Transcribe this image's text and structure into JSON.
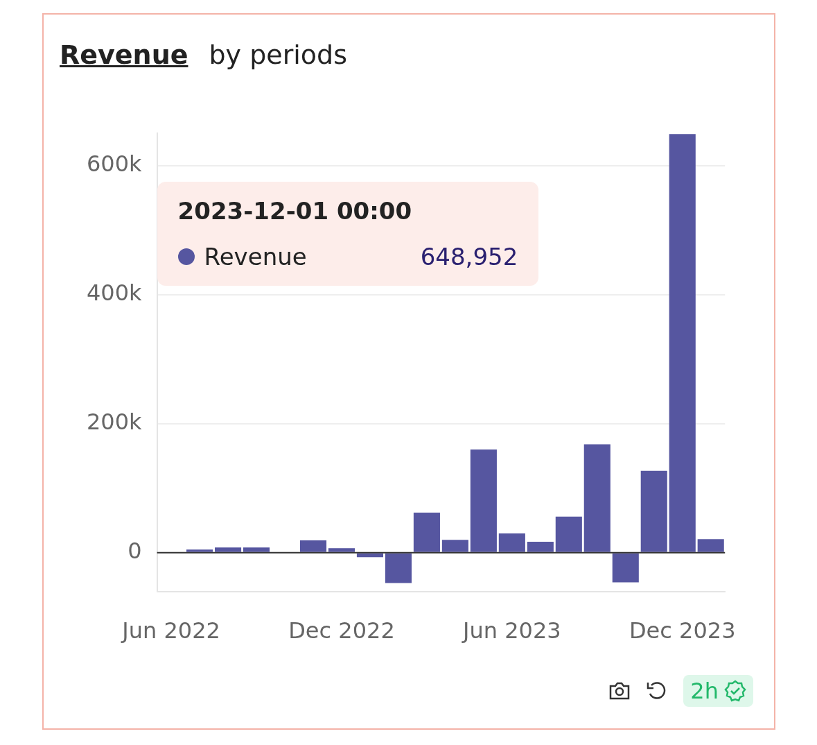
{
  "chart_data": {
    "type": "bar",
    "title": "Revenue",
    "subtitle": "by periods",
    "x": [
      "2022-06",
      "2022-07",
      "2022-08",
      "2022-09",
      "2022-10",
      "2022-11",
      "2022-12",
      "2023-01",
      "2023-02",
      "2023-03",
      "2023-04",
      "2023-05",
      "2023-06",
      "2023-07",
      "2023-08",
      "2023-09",
      "2023-10",
      "2023-11",
      "2023-12",
      "2024-01"
    ],
    "series": [
      {
        "name": "Revenue",
        "color": "#5656a0",
        "values": [
          1000,
          5000,
          8000,
          8000,
          1000,
          19000,
          7000,
          -7000,
          -47000,
          62000,
          20000,
          160000,
          30000,
          17000,
          56000,
          168000,
          -46000,
          127000,
          648952,
          21000
        ]
      }
    ],
    "xlim": [
      "2022-05-16",
      "2024-01-16"
    ],
    "xticks": [
      {
        "value": "2022-06",
        "label": "Jun 2022"
      },
      {
        "value": "2022-12",
        "label": "Dec 2022"
      },
      {
        "value": "2023-06",
        "label": "Jun 2023"
      },
      {
        "value": "2023-12",
        "label": "Dec 2023"
      }
    ],
    "ylim": [
      -60000,
      650000
    ],
    "yticks": [
      {
        "value": 0,
        "label": "0"
      },
      {
        "value": 200000,
        "label": "200k"
      },
      {
        "value": 400000,
        "label": "400k"
      },
      {
        "value": 600000,
        "label": "600k"
      }
    ],
    "value_labels": [
      null,
      null,
      null,
      null,
      null,
      null,
      null,
      null,
      null,
      null,
      null,
      null,
      null,
      null,
      null,
      null,
      null,
      null,
      "648,952",
      null
    ],
    "grid": "y",
    "legend": "top left",
    "annotations": [
      "2023-12-01 00:00",
      "2h"
    ]
  }
}
